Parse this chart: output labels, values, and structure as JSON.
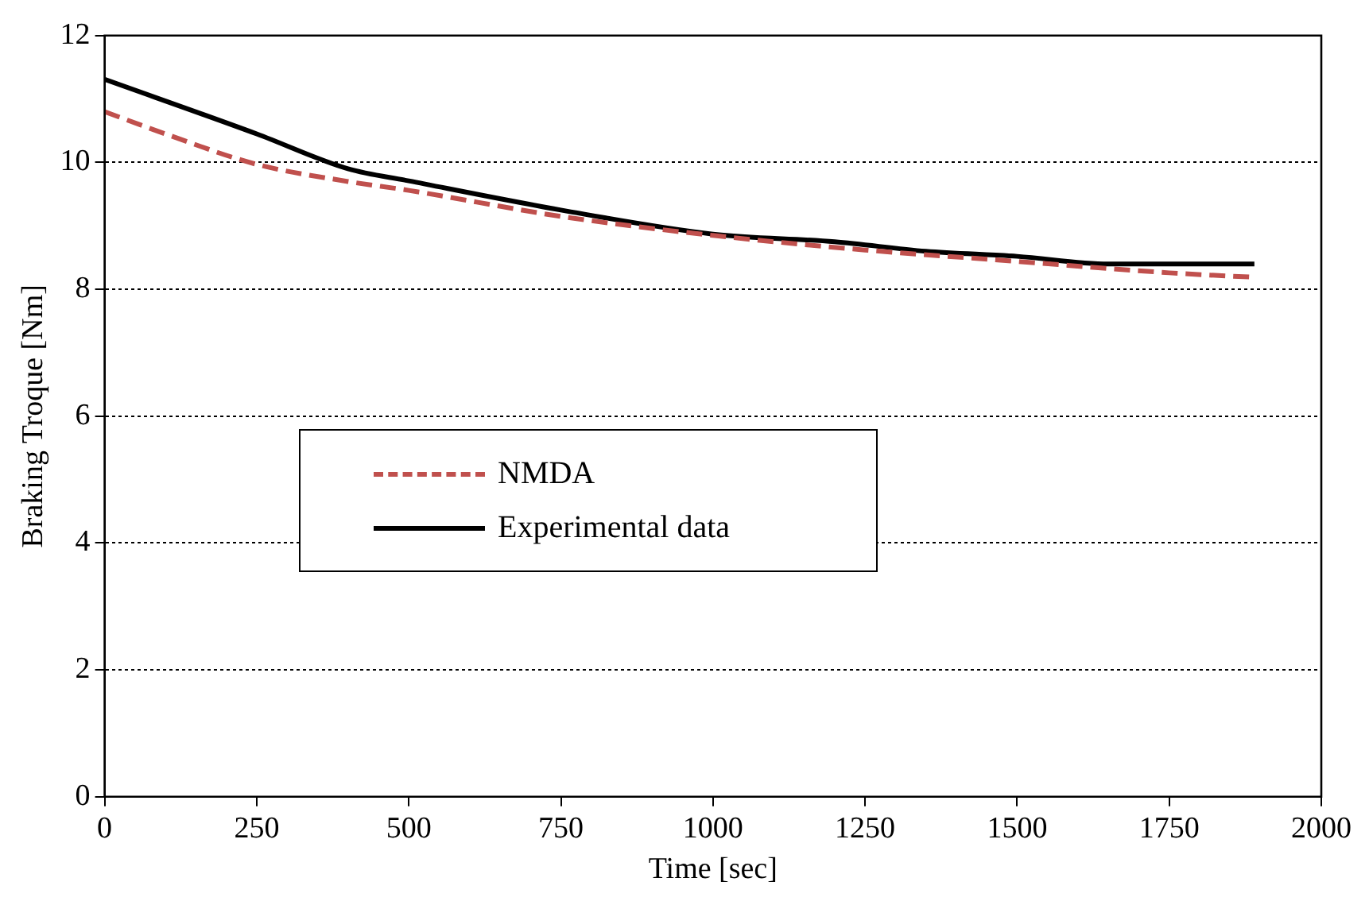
{
  "chart_data": {
    "type": "line",
    "xlabel": "Time [sec]",
    "ylabel": "Braking Troque [Nm]",
    "xlim": [
      0,
      2000
    ],
    "xticks": [
      0,
      250,
      500,
      750,
      1000,
      1250,
      1500,
      1750,
      2000
    ],
    "ylim": [
      0,
      12
    ],
    "yticks": [
      0,
      2,
      4,
      6,
      8,
      10,
      12
    ],
    "grid": "y",
    "legend": "left",
    "marker": "none",
    "series": [
      {
        "name": "NMDA",
        "color": "#c0504d",
        "line_style": "dashed",
        "x": [
          0,
          100,
          250,
          400,
          500,
          750,
          1000,
          1250,
          1500,
          1750,
          1890
        ],
        "values": [
          10.8,
          10.45,
          9.97,
          9.7,
          9.56,
          9.15,
          8.85,
          8.62,
          8.44,
          8.26,
          8.19
        ]
      },
      {
        "name": "Experimental data",
        "color": "#000000",
        "line_style": "solid",
        "x": [
          0,
          250,
          400,
          500,
          750,
          1000,
          1200,
          1350,
          1500,
          1650,
          1890
        ],
        "values": [
          11.31,
          10.45,
          9.9,
          9.71,
          9.25,
          8.87,
          8.75,
          8.6,
          8.52,
          8.4,
          8.4
        ]
      }
    ]
  }
}
